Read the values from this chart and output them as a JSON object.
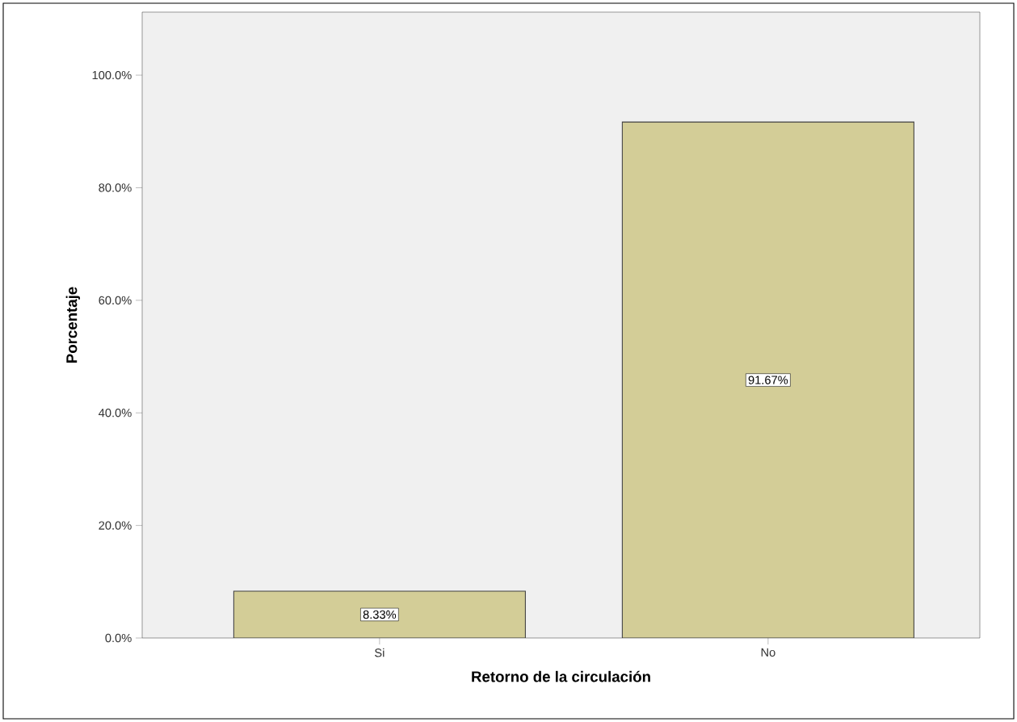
{
  "chart_data": {
    "type": "bar",
    "xlabel": "Retorno de la circulación",
    "ylabel": "Porcentaje",
    "categories": [
      "Si",
      "No"
    ],
    "values": [
      8.33,
      91.67
    ],
    "value_labels": [
      "8.33%",
      "91.67%"
    ],
    "color": "#d3cd97",
    "ylim": [
      0,
      111.2
    ],
    "yticks": [
      {
        "value": 0,
        "label": "0.0%"
      },
      {
        "value": 20,
        "label": "20.0%"
      },
      {
        "value": 40,
        "label": "40.0%"
      },
      {
        "value": 60,
        "label": "60.0%"
      },
      {
        "value": 80,
        "label": "80.0%"
      },
      {
        "value": 100,
        "label": "100.0%"
      }
    ]
  }
}
